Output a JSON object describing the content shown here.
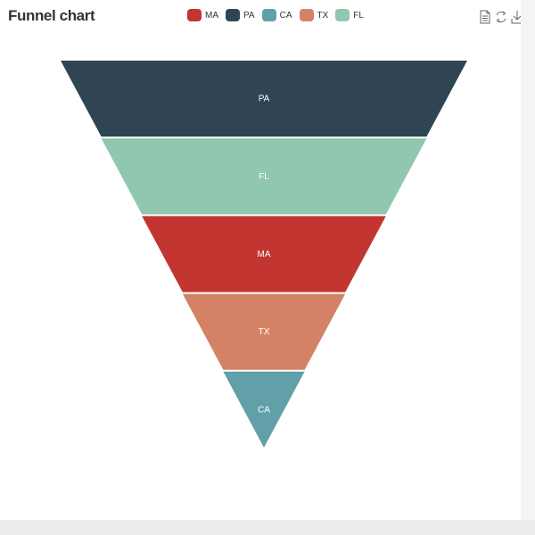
{
  "title": "Funnel chart",
  "toolbox": {
    "icons": [
      "data-view-icon",
      "restore-icon",
      "save-image-icon"
    ]
  },
  "colors": {
    "MA": "#c23531",
    "PA": "#2f4554",
    "CA": "#61a0a8",
    "TX": "#d48265",
    "FL": "#91c7ae"
  },
  "chart_data": {
    "type": "funnel",
    "legend": [
      "MA",
      "PA",
      "CA",
      "TX",
      "FL"
    ],
    "legend_position": "top-center",
    "sort": "descending",
    "stages": [
      {
        "name": "PA",
        "value": 100
      },
      {
        "name": "FL",
        "value": 80
      },
      {
        "name": "MA",
        "value": 60
      },
      {
        "name": "TX",
        "value": 40
      },
      {
        "name": "CA",
        "value": 20
      }
    ]
  }
}
